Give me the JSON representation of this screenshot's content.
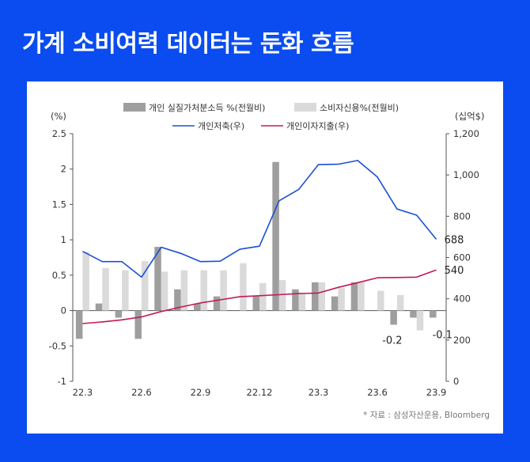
{
  "page": {
    "title": "가계 소비여력 데이터는 둔화 흐름",
    "source": "* 자료 : 삼성자산운용, Bloomberg"
  },
  "colors": {
    "background": "#0a4cf0",
    "panel": "#ffffff",
    "bar_income": "#9e9e9e",
    "bar_credit": "#dadada",
    "line_saving": "#1a4fd6",
    "line_interest": "#c2185b"
  },
  "chart_data": {
    "type": "bar",
    "title": "",
    "left_unit": "(%)",
    "right_unit": "(십억$)",
    "categories": [
      "22.3",
      "22.4",
      "22.5",
      "22.6",
      "22.7",
      "22.8",
      "22.9",
      "22.10",
      "22.11",
      "22.12",
      "23.1",
      "23.2",
      "23.3",
      "23.4",
      "23.5",
      "23.6",
      "23.7",
      "23.8",
      "23.9"
    ],
    "x_tick_labels": [
      {
        "index": 0,
        "label": "22.3"
      },
      {
        "index": 3,
        "label": "22.6"
      },
      {
        "index": 6,
        "label": "22.9"
      },
      {
        "index": 9,
        "label": "22.12"
      },
      {
        "index": 12,
        "label": "23.3"
      },
      {
        "index": 15,
        "label": "23.6"
      },
      {
        "index": 18,
        "label": "23.9"
      }
    ],
    "y_left": {
      "min": -1,
      "max": 2.5,
      "step": 0.5,
      "ticks": [
        "-1",
        "-0.5",
        "0",
        "0.5",
        "1",
        "1.5",
        "2",
        "2.5"
      ]
    },
    "y_right": {
      "min": 0,
      "max": 1200,
      "step": 200,
      "ticks": [
        "0",
        "200",
        "400",
        "600",
        "800",
        "1,000",
        "1,200"
      ]
    },
    "series": [
      {
        "name": "개인 실질가처분소득 %(전월비)",
        "kind": "bar",
        "axis": "left",
        "color": "#9e9e9e",
        "values": [
          -0.4,
          0.1,
          -0.1,
          -0.4,
          0.9,
          0.3,
          0.1,
          0.2,
          0.0,
          0.2,
          2.1,
          0.3,
          0.4,
          0.2,
          0.4,
          0.0,
          -0.2,
          -0.1,
          -0.1
        ]
      },
      {
        "name": "소비자신용%(전월비)",
        "kind": "bar",
        "axis": "left",
        "color": "#dadada",
        "values": [
          0.83,
          0.6,
          0.57,
          0.7,
          0.55,
          0.57,
          0.57,
          0.57,
          0.67,
          0.39,
          0.43,
          0.24,
          0.4,
          0.32,
          0.4,
          0.28,
          0.22,
          -0.28,
          0.0
        ]
      },
      {
        "name": "개인저축(우)",
        "kind": "line",
        "axis": "right",
        "color": "#1a4fd6",
        "values": [
          630,
          580,
          580,
          505,
          650,
          620,
          580,
          582,
          640,
          655,
          875,
          930,
          1050,
          1052,
          1070,
          990,
          835,
          805,
          688
        ]
      },
      {
        "name": "개인이자지출(우)",
        "kind": "line",
        "axis": "right",
        "color": "#c2185b",
        "values": [
          280,
          288,
          298,
          312,
          338,
          360,
          380,
          395,
          410,
          415,
          420,
          425,
          428,
          455,
          478,
          502,
          503,
          505,
          540
        ]
      }
    ],
    "annotations": [
      {
        "text": "688",
        "series": 2,
        "index": 18
      },
      {
        "text": "540",
        "series": 3,
        "index": 18
      },
      {
        "text": "-0.2",
        "series": 0,
        "index": 16
      },
      {
        "text": "-0.1",
        "series": 0,
        "index": 18
      }
    ],
    "legend": "top"
  }
}
